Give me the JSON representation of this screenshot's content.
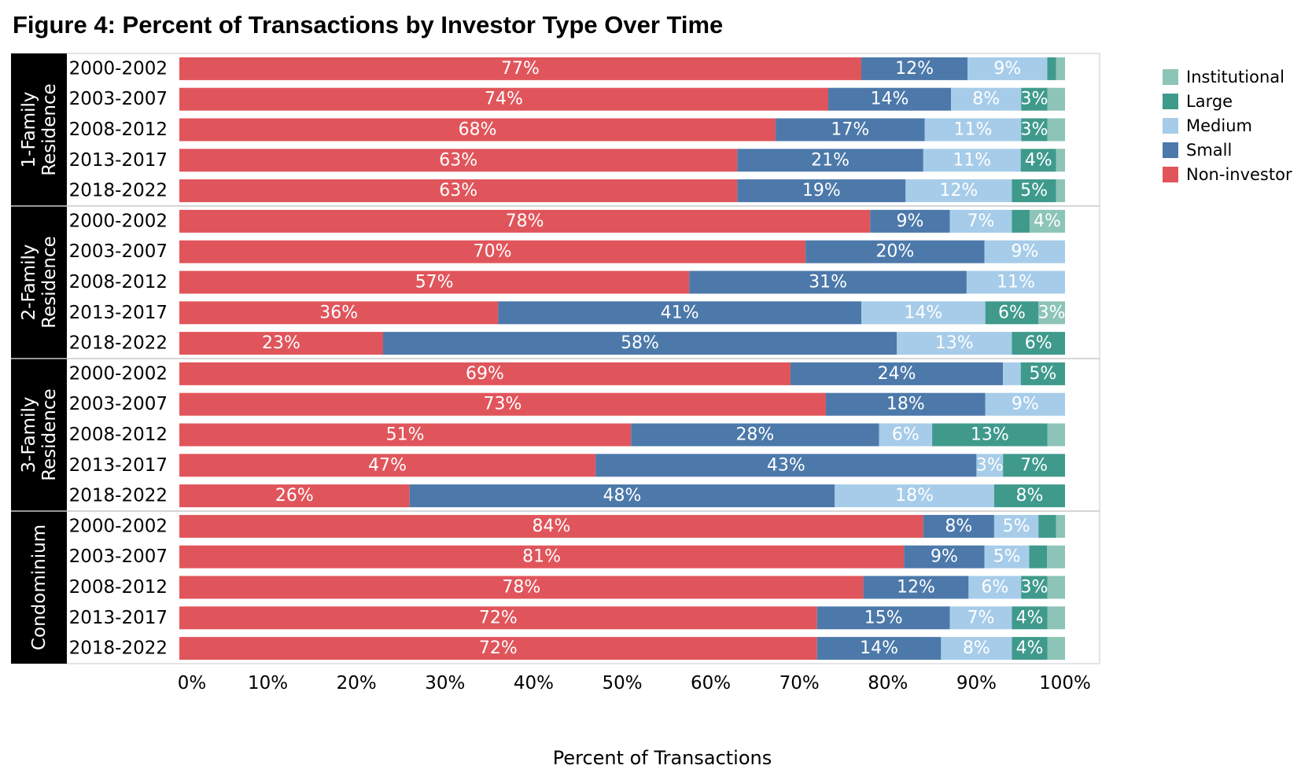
{
  "title": "Figure 4: Percent of Transactions by Investor Type Over Time",
  "chart_data": {
    "type": "bar",
    "orientation": "horizontal",
    "stacked": true,
    "xlabel": "Percent of Transactions",
    "xlim": [
      0,
      100
    ],
    "xticks": [
      "0%",
      "10%",
      "20%",
      "30%",
      "40%",
      "50%",
      "60%",
      "70%",
      "80%",
      "90%",
      "100%"
    ],
    "legend_position": "top-right",
    "legend_order": [
      "Institutional",
      "Large",
      "Medium",
      "Small",
      "Non-investor"
    ],
    "series_colors": {
      "Non-investor": "#e0555b",
      "Small": "#4c79aa",
      "Medium": "#a6cce9",
      "Large": "#3f9a8c",
      "Institutional": "#8cc4b7"
    },
    "series_order": [
      "Non-investor",
      "Small",
      "Medium",
      "Large",
      "Institutional"
    ],
    "groups": [
      {
        "name": "1-Family Residence",
        "label_lines": [
          "1-Family",
          "Residence"
        ],
        "rows": [
          {
            "period": "2000-2002",
            "values": [
              77,
              12,
              9,
              1,
              1
            ]
          },
          {
            "period": "2003-2007",
            "values": [
              74,
              14,
              8,
              3,
              2
            ]
          },
          {
            "period": "2008-2012",
            "values": [
              68,
              17,
              11,
              3,
              2
            ]
          },
          {
            "period": "2013-2017",
            "values": [
              63,
              21,
              11,
              4,
              1
            ]
          },
          {
            "period": "2018-2022",
            "values": [
              63,
              19,
              12,
              5,
              1
            ]
          }
        ]
      },
      {
        "name": "2-Family Residence",
        "label_lines": [
          "2-Family",
          "Residence"
        ],
        "rows": [
          {
            "period": "2000-2002",
            "values": [
              78,
              9,
              7,
              2,
              4
            ]
          },
          {
            "period": "2003-2007",
            "values": [
              70,
              20,
              9,
              0,
              0
            ]
          },
          {
            "period": "2008-2012",
            "values": [
              57,
              31,
              11,
              0,
              0
            ]
          },
          {
            "period": "2013-2017",
            "values": [
              36,
              41,
              14,
              6,
              3
            ]
          },
          {
            "period": "2018-2022",
            "values": [
              23,
              58,
              13,
              6,
              0
            ]
          }
        ]
      },
      {
        "name": "3-Family Residence",
        "label_lines": [
          "3-Family",
          "Residence"
        ],
        "rows": [
          {
            "period": "2000-2002",
            "values": [
              69,
              24,
              2,
              5,
              0
            ]
          },
          {
            "period": "2003-2007",
            "values": [
              73,
              18,
              9,
              0,
              0
            ]
          },
          {
            "period": "2008-2012",
            "values": [
              51,
              28,
              6,
              13,
              2
            ]
          },
          {
            "period": "2013-2017",
            "values": [
              47,
              43,
              3,
              7,
              0
            ]
          },
          {
            "period": "2018-2022",
            "values": [
              26,
              48,
              18,
              8,
              0
            ]
          }
        ]
      },
      {
        "name": "Condominium",
        "label_lines": [
          "Condominium"
        ],
        "rows": [
          {
            "period": "2000-2002",
            "values": [
              84,
              8,
              5,
              2,
              1
            ]
          },
          {
            "period": "2003-2007",
            "values": [
              81,
              9,
              5,
              2,
              2
            ]
          },
          {
            "period": "2008-2012",
            "values": [
              78,
              12,
              6,
              3,
              2
            ]
          },
          {
            "period": "2013-2017",
            "values": [
              72,
              15,
              7,
              4,
              2
            ]
          },
          {
            "period": "2018-2022",
            "values": [
              72,
              14,
              8,
              4,
              2
            ]
          }
        ]
      }
    ]
  }
}
